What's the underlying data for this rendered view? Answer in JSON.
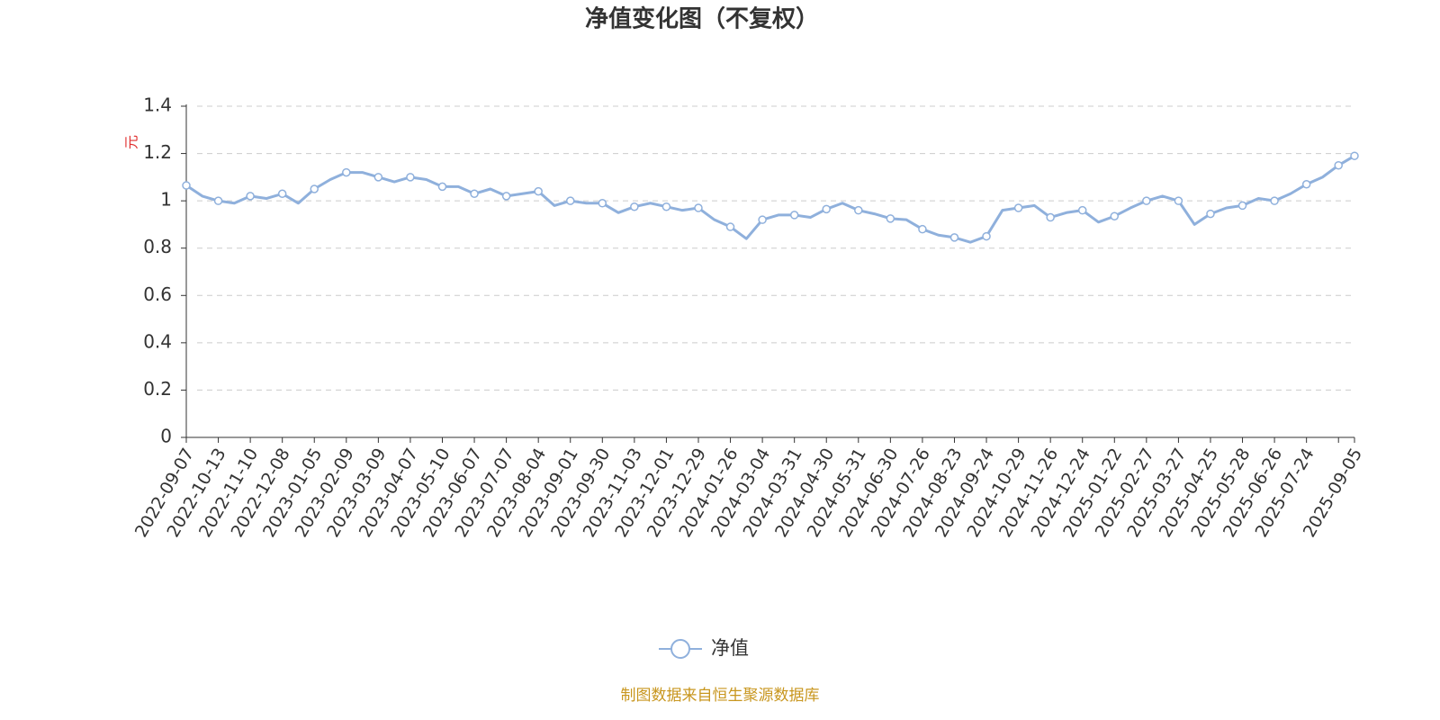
{
  "chart_data": {
    "type": "line",
    "title": "净值变化图（不复权）",
    "y_label": "元",
    "categories": [
      "2022-09-07",
      null,
      "2022-10-13",
      null,
      "2022-11-10",
      null,
      "2022-12-08",
      null,
      "2023-01-05",
      null,
      "2023-02-09",
      null,
      "2023-03-09",
      null,
      "2023-04-07",
      null,
      "2023-05-10",
      null,
      "2023-06-07",
      null,
      "2023-07-07",
      null,
      "2023-08-04",
      null,
      "2023-09-01",
      null,
      "2023-09-30",
      null,
      "2023-11-03",
      null,
      "2023-12-01",
      null,
      "2023-12-29",
      null,
      "2024-01-26",
      null,
      "2024-03-04",
      null,
      "2024-03-31",
      null,
      "2024-04-30",
      null,
      "2024-05-31",
      null,
      "2024-06-30",
      null,
      "2024-07-26",
      null,
      "2024-08-23",
      null,
      "2024-09-24",
      null,
      "2024-10-29",
      null,
      "2024-11-26",
      null,
      "2024-12-24",
      null,
      "2025-01-22",
      null,
      "2025-02-27",
      null,
      "2025-03-27",
      null,
      "2025-04-25",
      null,
      "2025-05-28",
      null,
      "2025-06-26",
      null,
      "2025-07-24",
      null,
      null,
      "2025-09-05"
    ],
    "series": [
      {
        "name": "净值",
        "color": "#8fb0dc",
        "values": [
          1.065,
          1.02,
          1.0,
          0.99,
          1.02,
          1.01,
          1.03,
          0.99,
          1.05,
          1.09,
          1.12,
          1.12,
          1.1,
          1.08,
          1.1,
          1.09,
          1.06,
          1.06,
          1.03,
          1.05,
          1.02,
          1.03,
          1.04,
          0.98,
          1.0,
          0.99,
          0.99,
          0.95,
          0.975,
          0.99,
          0.975,
          0.96,
          0.97,
          0.92,
          0.89,
          0.84,
          0.92,
          0.94,
          0.94,
          0.93,
          0.965,
          0.99,
          0.96,
          0.945,
          0.925,
          0.92,
          0.88,
          0.855,
          0.845,
          0.825,
          0.85,
          0.96,
          0.97,
          0.98,
          0.93,
          0.95,
          0.96,
          0.91,
          0.935,
          0.97,
          1.0,
          1.02,
          1.0,
          0.9,
          0.945,
          0.97,
          0.98,
          1.01,
          1.0,
          1.03,
          1.07,
          1.1,
          1.15,
          1.19
        ]
      }
    ],
    "ylim": [
      0,
      1.4
    ],
    "yticks": [
      0,
      0.2,
      0.4,
      0.6,
      0.8,
      1,
      1.2,
      1.4
    ],
    "grid": true,
    "source": "制图数据来自恒生聚源数据库"
  }
}
